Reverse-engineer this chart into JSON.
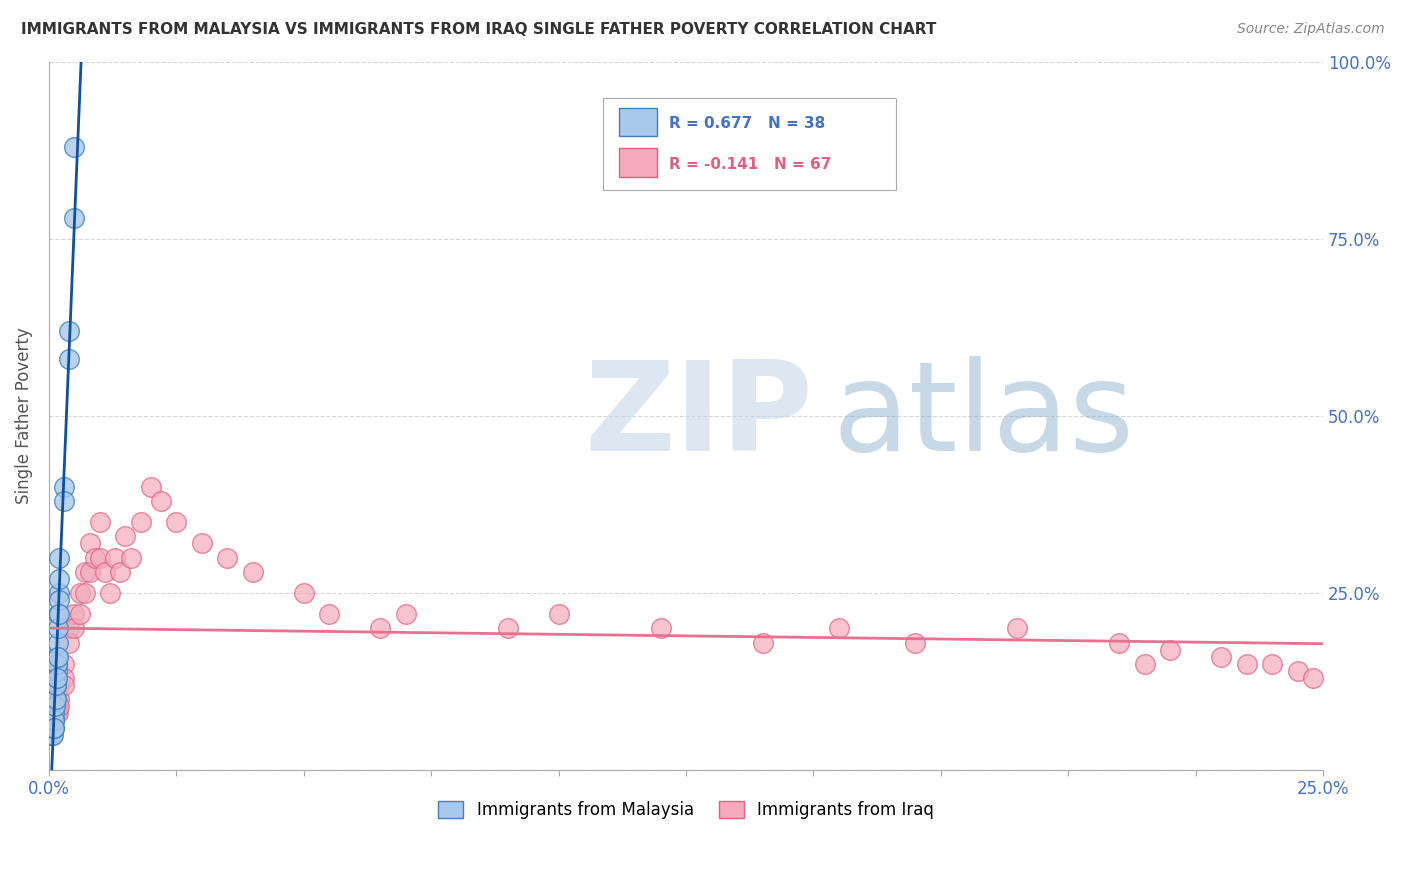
{
  "title": "IMMIGRANTS FROM MALAYSIA VS IMMIGRANTS FROM IRAQ SINGLE FATHER POVERTY CORRELATION CHART",
  "source": "Source: ZipAtlas.com",
  "ylabel": "Single Father Poverty",
  "xlim": [
    0.0,
    0.25
  ],
  "ylim": [
    0.0,
    1.0
  ],
  "legend_r_malaysia": "R = 0.677",
  "legend_n_malaysia": "N = 38",
  "legend_r_iraq": "R = -0.141",
  "legend_n_iraq": "N = 67",
  "color_malaysia_fill": "#A8C8EC",
  "color_malaysia_edge": "#4080C0",
  "color_iraq_fill": "#F4AABB",
  "color_iraq_edge": "#E06080",
  "color_malaysia_line": "#1050A0",
  "color_iraq_line": "#E87090",
  "watermark_zip": "ZIP",
  "watermark_atlas": "atlas",
  "watermark_color_zip": "#C8D8E8",
  "watermark_color_atlas": "#90B8D8",
  "malaysia_x": [
    0.0004,
    0.0005,
    0.0006,
    0.0006,
    0.0007,
    0.0008,
    0.0008,
    0.0009,
    0.0009,
    0.001,
    0.001,
    0.001,
    0.0012,
    0.0012,
    0.0013,
    0.0013,
    0.0014,
    0.0014,
    0.0015,
    0.0015,
    0.0016,
    0.0016,
    0.0016,
    0.0017,
    0.0017,
    0.0018,
    0.0018,
    0.0019,
    0.002,
    0.002,
    0.002,
    0.002,
    0.003,
    0.003,
    0.004,
    0.004,
    0.005,
    0.005
  ],
  "malaysia_y": [
    0.05,
    0.06,
    0.05,
    0.07,
    0.06,
    0.05,
    0.08,
    0.07,
    0.06,
    0.08,
    0.07,
    0.06,
    0.1,
    0.09,
    0.12,
    0.1,
    0.13,
    0.12,
    0.15,
    0.14,
    0.16,
    0.15,
    0.13,
    0.18,
    0.16,
    0.22,
    0.2,
    0.25,
    0.3,
    0.27,
    0.24,
    0.22,
    0.4,
    0.38,
    0.62,
    0.58,
    0.88,
    0.78
  ],
  "iraq_x": [
    0.0004,
    0.0005,
    0.0006,
    0.0007,
    0.0008,
    0.0009,
    0.001,
    0.001,
    0.0012,
    0.0013,
    0.0014,
    0.0015,
    0.0015,
    0.0016,
    0.0017,
    0.0018,
    0.002,
    0.002,
    0.002,
    0.003,
    0.003,
    0.003,
    0.004,
    0.004,
    0.005,
    0.005,
    0.006,
    0.006,
    0.007,
    0.007,
    0.008,
    0.008,
    0.009,
    0.01,
    0.01,
    0.011,
    0.012,
    0.013,
    0.014,
    0.015,
    0.016,
    0.018,
    0.02,
    0.022,
    0.025,
    0.03,
    0.035,
    0.04,
    0.05,
    0.055,
    0.065,
    0.07,
    0.09,
    0.1,
    0.12,
    0.14,
    0.155,
    0.17,
    0.19,
    0.21,
    0.215,
    0.22,
    0.23,
    0.235,
    0.24,
    0.245,
    0.248
  ],
  "iraq_y": [
    0.1,
    0.08,
    0.09,
    0.1,
    0.08,
    0.07,
    0.09,
    0.08,
    0.1,
    0.09,
    0.1,
    0.08,
    0.12,
    0.1,
    0.09,
    0.08,
    0.12,
    0.1,
    0.09,
    0.15,
    0.13,
    0.12,
    0.2,
    0.18,
    0.22,
    0.2,
    0.25,
    0.22,
    0.28,
    0.25,
    0.32,
    0.28,
    0.3,
    0.35,
    0.3,
    0.28,
    0.25,
    0.3,
    0.28,
    0.33,
    0.3,
    0.35,
    0.4,
    0.38,
    0.35,
    0.32,
    0.3,
    0.28,
    0.25,
    0.22,
    0.2,
    0.22,
    0.2,
    0.22,
    0.2,
    0.18,
    0.2,
    0.18,
    0.2,
    0.18,
    0.15,
    0.17,
    0.16,
    0.15,
    0.15,
    0.14,
    0.13
  ]
}
